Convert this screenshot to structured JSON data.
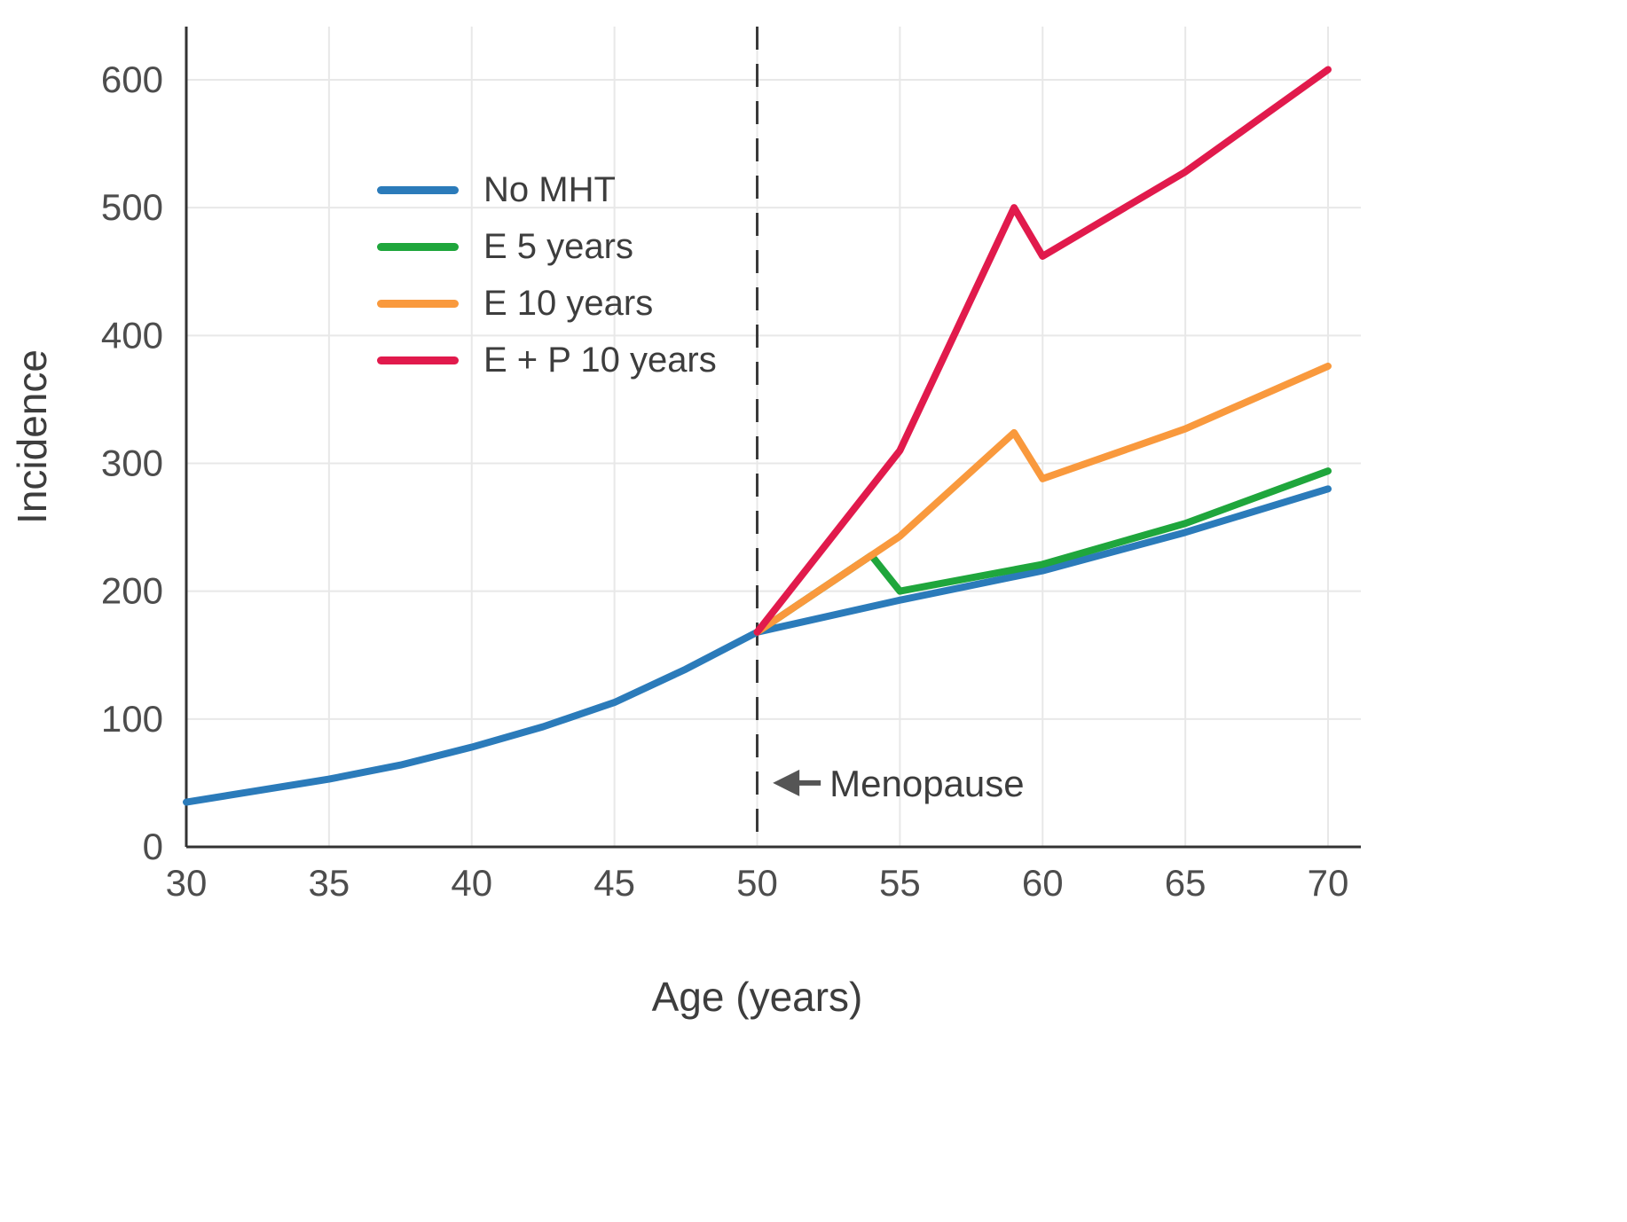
{
  "chart_data": {
    "type": "line",
    "title": "",
    "xlabel": "Age (years)",
    "ylabel": "Incidence",
    "xlim": [
      30,
      70
    ],
    "ylim": [
      0,
      650
    ],
    "x_ticks": [
      30,
      35,
      40,
      45,
      50,
      55,
      60,
      65,
      70
    ],
    "y_ticks": [
      0,
      100,
      200,
      300,
      400,
      500,
      600
    ],
    "grid": true,
    "legend_position": "upper-left-inside",
    "series": [
      {
        "name": "No MHT",
        "color": "#2b7bba",
        "x": [
          30,
          32.5,
          35,
          37.5,
          40,
          42.5,
          45,
          47.5,
          50,
          55,
          60,
          65,
          70
        ],
        "y": [
          35,
          44,
          53,
          64,
          78,
          94,
          113,
          139,
          168,
          193,
          216,
          246,
          280
        ]
      },
      {
        "name": "E 5 years",
        "color": "#1fa63c",
        "x": [
          50,
          54,
          55,
          60,
          65,
          70
        ],
        "y": [
          168,
          228,
          200,
          221,
          253,
          294
        ]
      },
      {
        "name": "E 10 years",
        "color": "#f9993d",
        "x": [
          50,
          55,
          59,
          60,
          65,
          70
        ],
        "y": [
          168,
          243,
          324,
          288,
          327,
          376
        ]
      },
      {
        "name": "E + P 10 years",
        "color": "#e11a4c",
        "x": [
          50,
          55,
          59,
          60,
          65,
          70
        ],
        "y": [
          168,
          310,
          500,
          462,
          528,
          608
        ]
      }
    ],
    "vline": {
      "x": 50,
      "style": "dashed",
      "color": "#3a3a3a"
    },
    "annotations": [
      {
        "text": "Menopause",
        "x": 50.3,
        "y": 50,
        "arrow": "left"
      }
    ],
    "colors": {
      "grid": "#e8e8e8",
      "spine": "#333333",
      "tick_label": "#4d4d4d",
      "axis_label": "#3d3d3d",
      "annotation": "#3d3d3d",
      "background": "#ffffff"
    }
  }
}
